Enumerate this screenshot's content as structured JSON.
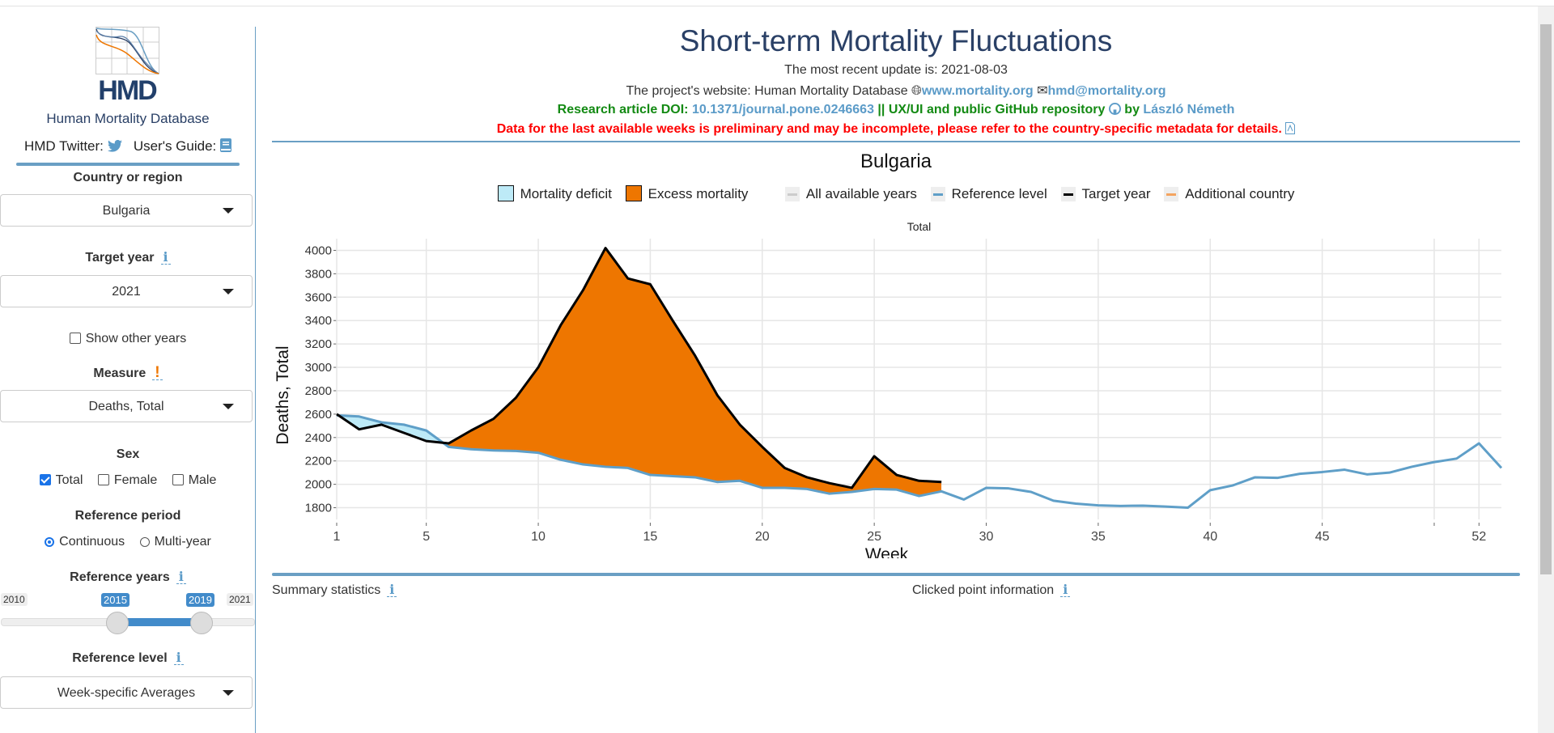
{
  "sidebar": {
    "logo_text": "HMD",
    "org_name": "Human Mortality Database",
    "twitter_label": "HMD Twitter:",
    "guide_label": "User's Guide:",
    "country_label": "Country or region",
    "country_value": "Bulgaria",
    "target_year_label": "Target year",
    "target_year_value": "2021",
    "show_other_years": "Show other years",
    "measure_label": "Measure",
    "measure_value": "Deaths, Total",
    "sex_label": "Sex",
    "sex_options": [
      {
        "label": "Total",
        "checked": true
      },
      {
        "label": "Female",
        "checked": false
      },
      {
        "label": "Male",
        "checked": false
      }
    ],
    "ref_period_label": "Reference period",
    "ref_period_options": [
      {
        "label": "Continuous",
        "selected": true
      },
      {
        "label": "Multi-year",
        "selected": false
      }
    ],
    "ref_years_label": "Reference years",
    "ref_years": {
      "min": "2010",
      "max": "2021",
      "from": "2015",
      "to": "2019"
    },
    "ref_level_label": "Reference level",
    "ref_level_value": "Week-specific Averages",
    "info_glyph": "i",
    "warn_glyph": "!"
  },
  "header": {
    "title": "Short-term Mortality Fluctuations",
    "update": "The most recent update is: 2021-08-03",
    "website_prefix": "The project's website: Human Mortality Database",
    "website_link": "www.mortality.org",
    "email_link": "hmd@mortality.org",
    "doi_prefix": "Research article DOI:",
    "doi_link": "10.1371/journal.pone.0246663",
    "repo_text": "|| UX/UI and public GitHub repository",
    "by_text": "by",
    "author_link": "László Németh",
    "warning": "Data for the last available weeks is preliminary and may be incomplete, please refer to the country-specific metadata for details."
  },
  "legend": {
    "deficit": "Mortality deficit",
    "excess": "Excess mortality",
    "all_years": "All available years",
    "reference": "Reference level",
    "target": "Target year",
    "additional": "Additional country"
  },
  "colors": {
    "deficit": "#bdeaf7",
    "excess": "#ee7600",
    "all_years": "#cccccc",
    "reference": "#5f9fc8",
    "target": "#000000",
    "additional": "#f4a460",
    "accent": "#6a9fc4"
  },
  "bottom": {
    "summary": "Summary statistics",
    "clicked": "Clicked point information"
  },
  "chart_data": {
    "type": "line",
    "title": "Bulgaria",
    "subtitle": "Total",
    "xlabel": "Week",
    "ylabel": "Deaths, Total",
    "xlim": [
      1,
      53
    ],
    "ylim": [
      1700,
      4100
    ],
    "xticks": [
      1,
      5,
      10,
      15,
      20,
      25,
      30,
      35,
      40,
      45,
      50,
      52
    ],
    "xtick_labels": [
      "1",
      "5",
      "10",
      "15",
      "20",
      "25",
      "30",
      "35",
      "40",
      "45",
      "",
      "52"
    ],
    "yticks": [
      1800,
      2000,
      2200,
      2400,
      2600,
      2800,
      3000,
      3200,
      3400,
      3600,
      3800,
      4000
    ],
    "grid": true,
    "series": [
      {
        "name": "Target year",
        "x_start": 1,
        "values": [
          2600,
          2470,
          2510,
          2440,
          2370,
          2350,
          2460,
          2560,
          2740,
          3000,
          3360,
          3660,
          4020,
          3760,
          3710,
          3400,
          3100,
          2760,
          2510,
          2320,
          2140,
          2060,
          2010,
          1970,
          2240,
          2080,
          2030,
          2020
        ]
      },
      {
        "name": "Reference level",
        "x_start": 1,
        "values": [
          2590,
          2580,
          2530,
          2510,
          2460,
          2320,
          2300,
          2290,
          2285,
          2270,
          2210,
          2170,
          2150,
          2140,
          2080,
          2070,
          2060,
          2020,
          2030,
          1970,
          1970,
          1960,
          1920,
          1935,
          1960,
          1955,
          1900,
          1940,
          1870,
          1970,
          1965,
          1935,
          1860,
          1835,
          1820,
          1815,
          1818,
          1810,
          1800,
          1950,
          1990,
          2060,
          2055,
          2090,
          2105,
          2125,
          2085,
          2100,
          2150,
          2190,
          2220,
          2350,
          2140
        ]
      }
    ]
  }
}
